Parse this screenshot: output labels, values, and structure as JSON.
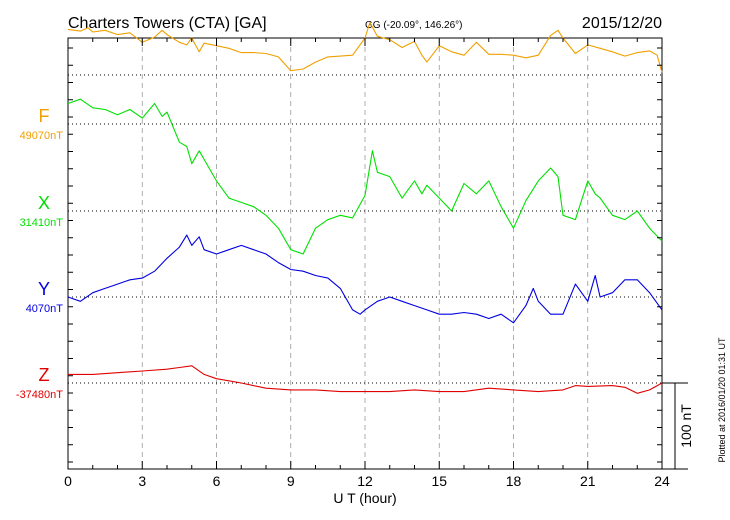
{
  "header": {
    "title": "Charters Towers (CTA)  [GA]",
    "coords": "GG (-20.09°, 146.26°)",
    "date": "2015/12/20"
  },
  "footer": {
    "plotted": "Plotted at 2016/01/20 01:31  UT"
  },
  "chart_data": {
    "type": "line",
    "title": "Charters Towers (CTA)  [GA]",
    "xlabel": "U T (hour)",
    "xlim": [
      0,
      24
    ],
    "x_ticks": [
      "0",
      "3",
      "6",
      "9",
      "12",
      "15",
      "18",
      "21",
      "24"
    ],
    "scale_bar": "100 nT",
    "grid": "dotted baselines per component",
    "series": [
      {
        "name": "F",
        "baseline_label": "49070nT",
        "baseline": 49070,
        "color": "#f0a000",
        "x": [
          0,
          0.5,
          0.8,
          1.0,
          1.5,
          2.0,
          2.5,
          3.0,
          3.5,
          3.8,
          4.0,
          4.5,
          4.8,
          5.0,
          5.3,
          5.5,
          6.0,
          6.5,
          7.0,
          7.5,
          8.0,
          8.5,
          9.0,
          9.5,
          10.0,
          10.5,
          11.0,
          11.5,
          12.0,
          12.2,
          12.5,
          13.0,
          13.5,
          14.0,
          14.3,
          14.5,
          15.0,
          15.5,
          16.0,
          16.5,
          17.0,
          17.5,
          18.0,
          18.5,
          19.0,
          19.5,
          19.8,
          20.0,
          20.5,
          21.0,
          21.5,
          22.0,
          22.5,
          23.0,
          23.5,
          23.8,
          24.0
        ],
        "y": [
          110,
          108,
          112,
          107,
          109,
          104,
          106,
          95,
          101,
          109,
          104,
          95,
          92,
          100,
          84,
          94,
          91,
          88,
          83,
          83,
          82,
          78,
          62,
          64,
          72,
          78,
          79,
          80,
          100,
          118,
          102,
          98,
          89,
          96,
          80,
          72,
          91,
          84,
          80,
          95,
          81,
          81,
          80,
          77,
          80,
          103,
          109,
          100,
          82,
          92,
          88,
          84,
          79,
          83,
          85,
          80,
          60
        ]
      },
      {
        "name": "X",
        "baseline_label": "31410nT",
        "baseline": 31410,
        "color": "#00e000",
        "x": [
          0,
          0.5,
          1.0,
          1.5,
          2.0,
          2.5,
          3.0,
          3.5,
          3.8,
          4.0,
          4.5,
          4.8,
          5.0,
          5.3,
          5.5,
          6.0,
          6.5,
          7.0,
          7.5,
          8.0,
          8.5,
          9.0,
          9.5,
          10.0,
          10.5,
          11.0,
          11.5,
          12.0,
          12.3,
          12.5,
          13.0,
          13.5,
          14.0,
          14.3,
          14.5,
          15.0,
          15.5,
          16.0,
          16.5,
          17.0,
          17.5,
          18.0,
          18.5,
          19.0,
          19.5,
          19.8,
          20.0,
          20.5,
          21.0,
          21.3,
          21.5,
          22.0,
          22.5,
          23.0,
          23.5,
          24.0
        ],
        "y": [
          125,
          130,
          120,
          118,
          112,
          118,
          108,
          125,
          110,
          115,
          80,
          75,
          55,
          70,
          60,
          35,
          15,
          10,
          5,
          -5,
          -20,
          -45,
          -50,
          -20,
          -10,
          -5,
          -8,
          18,
          70,
          45,
          40,
          15,
          35,
          20,
          30,
          15,
          0,
          32,
          20,
          35,
          5,
          -20,
          12,
          35,
          50,
          40,
          -5,
          -10,
          35,
          20,
          15,
          -5,
          -10,
          0,
          -20,
          -35
        ]
      },
      {
        "name": "Y",
        "baseline_label": "4070nT",
        "baseline": 4070,
        "color": "#0000e0",
        "x": [
          0,
          0.5,
          1.0,
          1.5,
          2.0,
          2.5,
          3.0,
          3.5,
          4.0,
          4.5,
          4.8,
          5.0,
          5.3,
          5.5,
          6.0,
          6.5,
          7.0,
          7.5,
          8.0,
          8.5,
          9.0,
          9.5,
          10.0,
          10.5,
          11.0,
          11.5,
          11.8,
          12.0,
          12.5,
          13.0,
          13.5,
          14.0,
          14.5,
          15.0,
          15.5,
          16.0,
          16.5,
          17.0,
          17.5,
          18.0,
          18.5,
          18.8,
          19.0,
          19.5,
          20.0,
          20.5,
          21.0,
          21.3,
          21.5,
          22.0,
          22.5,
          23.0,
          23.5,
          24.0
        ],
        "y": [
          0,
          -5,
          5,
          10,
          15,
          20,
          22,
          30,
          45,
          58,
          72,
          60,
          70,
          55,
          50,
          55,
          60,
          55,
          50,
          40,
          32,
          30,
          25,
          22,
          10,
          -15,
          -20,
          -15,
          -5,
          0,
          -5,
          -10,
          -15,
          -20,
          -20,
          -18,
          -20,
          -25,
          -20,
          -30,
          -10,
          10,
          -5,
          -20,
          -20,
          15,
          -5,
          25,
          0,
          5,
          20,
          20,
          5,
          -15
        ]
      },
      {
        "name": "Z",
        "baseline_label": "-37480nT",
        "baseline": -37480,
        "color": "#e00000",
        "x": [
          0,
          1,
          2,
          3,
          4,
          4.5,
          5,
          5.5,
          6,
          7,
          8,
          9,
          10,
          11,
          12,
          13,
          14,
          15,
          16,
          17,
          18,
          19,
          20,
          20.5,
          21,
          22,
          22.5,
          23,
          23.5,
          24
        ],
        "y": [
          10,
          10,
          12,
          14,
          16,
          18,
          20,
          10,
          5,
          0,
          -6,
          -8,
          -8,
          -10,
          -10,
          -10,
          -8,
          -10,
          -10,
          -6,
          -8,
          -10,
          -8,
          -3,
          -4,
          -3,
          -5,
          -12,
          -8,
          0
        ]
      }
    ]
  }
}
